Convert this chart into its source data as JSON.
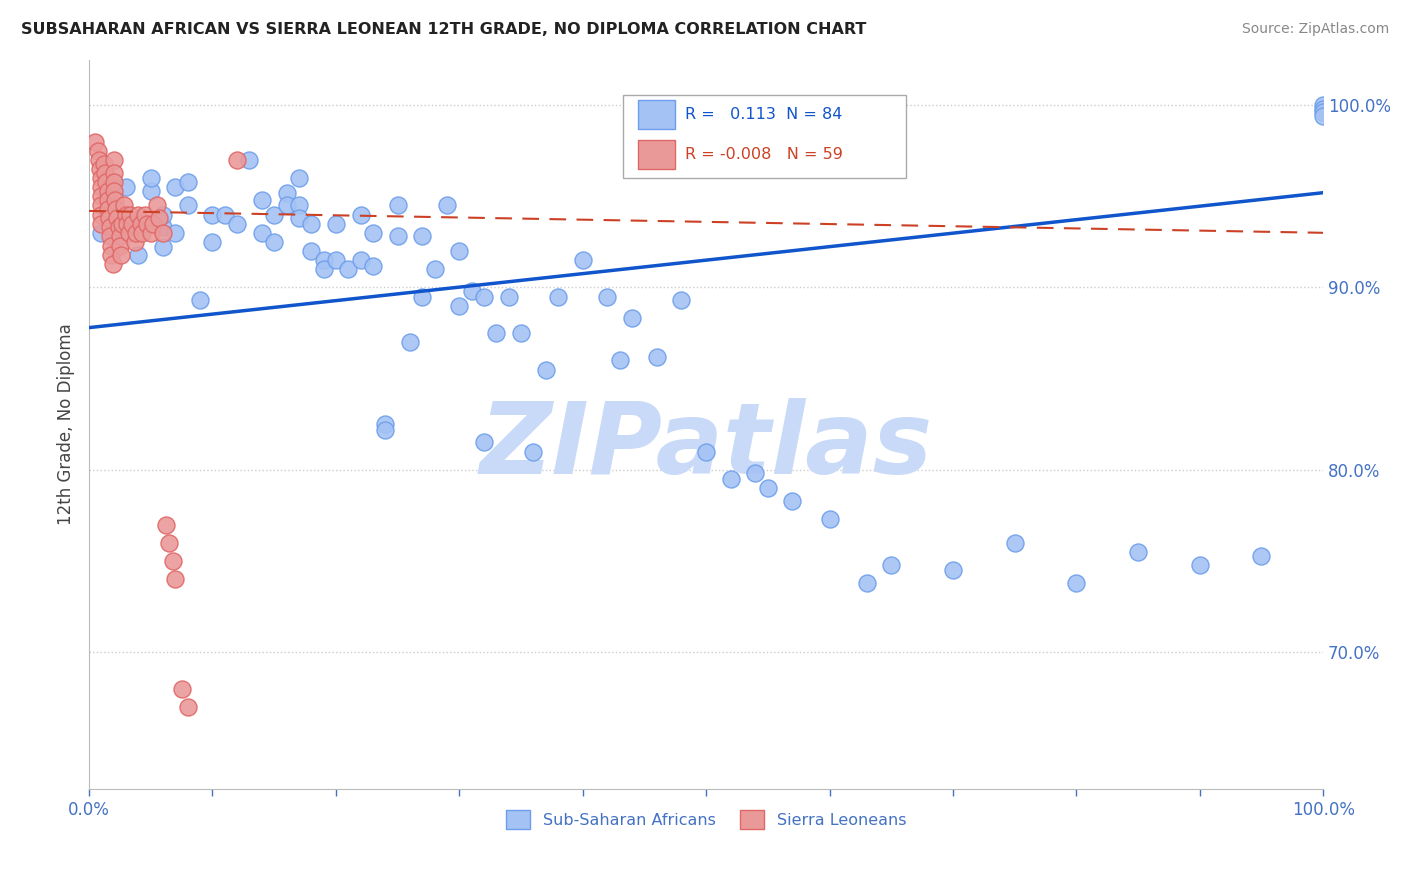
{
  "title": "SUBSAHARAN AFRICAN VS SIERRA LEONEAN 12TH GRADE, NO DIPLOMA CORRELATION CHART",
  "source": "Source: ZipAtlas.com",
  "ylabel": "12th Grade, No Diploma",
  "legend_blue_r": "0.113",
  "legend_blue_n": "84",
  "legend_pink_r": "-0.008",
  "legend_pink_n": "59",
  "legend_label_blue": "Sub-Saharan Africans",
  "legend_label_pink": "Sierra Leoneans",
  "blue_color": "#a4c2f4",
  "blue_edge_color": "#6d9eeb",
  "pink_color": "#ea9999",
  "pink_edge_color": "#e06666",
  "blue_line_color": "#1155cc",
  "pink_line_color": "#cc4125",
  "tick_color": "#4472c4",
  "watermark": "ZIPatlas",
  "watermark_color": "#c9daf8",
  "background_color": "#ffffff",
  "grid_color": "#cccccc",
  "xlim": [
    0.0,
    1.0
  ],
  "ylim": [
    0.625,
    1.025
  ],
  "yticks": [
    0.7,
    0.8,
    0.9,
    1.0
  ],
  "ytick_labels": [
    "70.0%",
    "80.0%",
    "90.0%",
    "100.0%"
  ],
  "blue_scatter_x": [
    0.01,
    0.02,
    0.03,
    0.04,
    0.04,
    0.05,
    0.05,
    0.06,
    0.06,
    0.06,
    0.07,
    0.07,
    0.08,
    0.08,
    0.09,
    0.1,
    0.1,
    0.11,
    0.12,
    0.13,
    0.14,
    0.14,
    0.15,
    0.15,
    0.16,
    0.16,
    0.17,
    0.17,
    0.17,
    0.18,
    0.18,
    0.19,
    0.19,
    0.2,
    0.2,
    0.21,
    0.22,
    0.22,
    0.23,
    0.23,
    0.24,
    0.24,
    0.25,
    0.25,
    0.26,
    0.27,
    0.27,
    0.28,
    0.29,
    0.3,
    0.3,
    0.31,
    0.32,
    0.32,
    0.33,
    0.34,
    0.35,
    0.36,
    0.37,
    0.38,
    0.4,
    0.42,
    0.43,
    0.44,
    0.46,
    0.48,
    0.5,
    0.52,
    0.54,
    0.55,
    0.57,
    0.6,
    0.63,
    0.65,
    0.7,
    0.75,
    0.8,
    0.85,
    0.9,
    0.95,
    1.0,
    1.0,
    1.0,
    1.0
  ],
  "blue_scatter_y": [
    0.93,
    0.928,
    0.955,
    0.918,
    0.935,
    0.953,
    0.96,
    0.933,
    0.922,
    0.94,
    0.955,
    0.93,
    0.958,
    0.945,
    0.893,
    0.94,
    0.925,
    0.94,
    0.935,
    0.97,
    0.948,
    0.93,
    0.925,
    0.94,
    0.952,
    0.945,
    0.945,
    0.96,
    0.938,
    0.92,
    0.935,
    0.915,
    0.91,
    0.935,
    0.915,
    0.91,
    0.915,
    0.94,
    0.912,
    0.93,
    0.825,
    0.822,
    0.945,
    0.928,
    0.87,
    0.895,
    0.928,
    0.91,
    0.945,
    0.89,
    0.92,
    0.898,
    0.815,
    0.895,
    0.875,
    0.895,
    0.875,
    0.81,
    0.855,
    0.895,
    0.915,
    0.895,
    0.86,
    0.883,
    0.862,
    0.893,
    0.81,
    0.795,
    0.798,
    0.79,
    0.783,
    0.773,
    0.738,
    0.748,
    0.745,
    0.76,
    0.738,
    0.755,
    0.748,
    0.753,
    1.0,
    0.998,
    0.996,
    0.994
  ],
  "pink_scatter_x": [
    0.005,
    0.007,
    0.008,
    0.009,
    0.01,
    0.01,
    0.01,
    0.01,
    0.01,
    0.01,
    0.012,
    0.013,
    0.014,
    0.015,
    0.015,
    0.015,
    0.016,
    0.017,
    0.017,
    0.018,
    0.018,
    0.019,
    0.02,
    0.02,
    0.02,
    0.02,
    0.021,
    0.022,
    0.023,
    0.024,
    0.025,
    0.025,
    0.026,
    0.027,
    0.028,
    0.03,
    0.031,
    0.032,
    0.033,
    0.035,
    0.037,
    0.038,
    0.04,
    0.042,
    0.043,
    0.045,
    0.047,
    0.05,
    0.052,
    0.055,
    0.057,
    0.06,
    0.062,
    0.065,
    0.068,
    0.07,
    0.075,
    0.08,
    0.12
  ],
  "pink_scatter_y": [
    0.98,
    0.975,
    0.97,
    0.965,
    0.96,
    0.955,
    0.95,
    0.945,
    0.94,
    0.935,
    0.968,
    0.963,
    0.958,
    0.953,
    0.948,
    0.943,
    0.938,
    0.933,
    0.928,
    0.923,
    0.918,
    0.913,
    0.97,
    0.963,
    0.958,
    0.953,
    0.948,
    0.943,
    0.938,
    0.933,
    0.928,
    0.923,
    0.918,
    0.935,
    0.945,
    0.94,
    0.935,
    0.93,
    0.94,
    0.935,
    0.925,
    0.93,
    0.94,
    0.935,
    0.93,
    0.94,
    0.935,
    0.93,
    0.935,
    0.945,
    0.938,
    0.93,
    0.77,
    0.76,
    0.75,
    0.74,
    0.68,
    0.67,
    0.97
  ],
  "blue_trend_x": [
    0.0,
    1.0
  ],
  "blue_trend_y": [
    0.878,
    0.952
  ],
  "pink_trend_x": [
    0.0,
    1.0
  ],
  "pink_trend_y": [
    0.942,
    0.93
  ]
}
